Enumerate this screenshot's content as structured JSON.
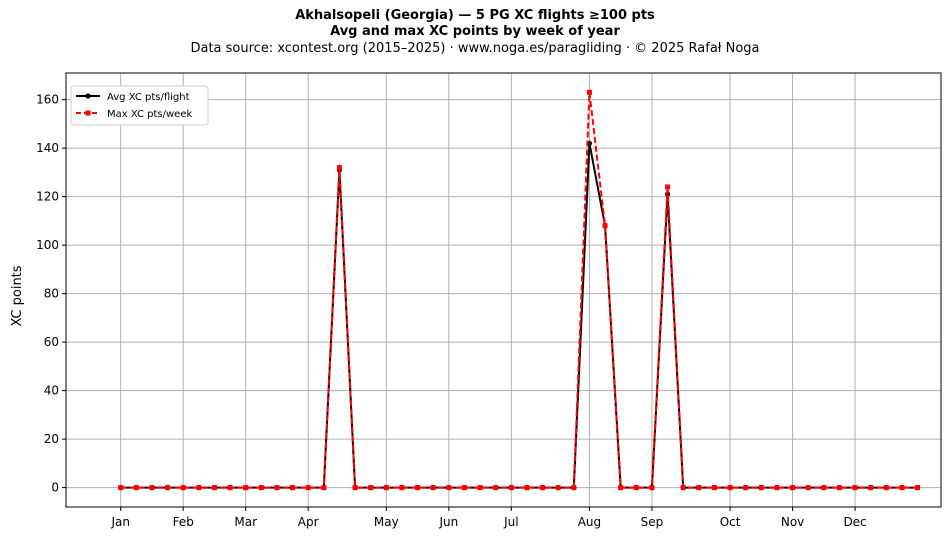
{
  "header": {
    "title": "Akhalsopeli (Georgia)  —  5 PG XC flights ≥100 pts",
    "subtitle": "Avg and max XC points by week of year",
    "source": "Data source: xcontest.org (2015–2025)  ·  www.noga.es/paragliding  ·  © 2025 Rafał Noga"
  },
  "chart_data": {
    "type": "line",
    "title": "Akhalsopeli (Georgia)  —  5 PG XC flights ≥100 pts",
    "subtitle": "Avg and max XC points by week of year",
    "xlabel": "",
    "ylabel": "XC points",
    "ylim": [
      -8,
      171
    ],
    "xlim": [
      -2.5,
      53.5
    ],
    "yticks": [
      0,
      20,
      40,
      60,
      80,
      100,
      120,
      140,
      160
    ],
    "month_ticks": [
      {
        "label": "Jan",
        "week": 1
      },
      {
        "label": "Feb",
        "week": 5
      },
      {
        "label": "Mar",
        "week": 9
      },
      {
        "label": "Apr",
        "week": 13
      },
      {
        "label": "May",
        "week": 18
      },
      {
        "label": "Jun",
        "week": 22
      },
      {
        "label": "Jul",
        "week": 26
      },
      {
        "label": "Aug",
        "week": 31
      },
      {
        "label": "Sep",
        "week": 35
      },
      {
        "label": "Oct",
        "week": 40
      },
      {
        "label": "Nov",
        "week": 44
      },
      {
        "label": "Dec",
        "week": 48
      }
    ],
    "x": [
      1,
      2,
      3,
      4,
      5,
      6,
      7,
      8,
      9,
      10,
      11,
      12,
      13,
      14,
      15,
      16,
      17,
      18,
      19,
      20,
      21,
      22,
      23,
      24,
      25,
      26,
      27,
      28,
      29,
      30,
      31,
      32,
      33,
      34,
      35,
      36,
      37,
      38,
      39,
      40,
      41,
      42,
      43,
      44,
      45,
      46,
      47,
      48,
      49,
      50,
      51,
      52
    ],
    "series": [
      {
        "name": "Avg XC pts/flight",
        "color": "#000000",
        "style": "solid",
        "marker": "circle",
        "values": [
          0,
          0,
          0,
          0,
          0,
          0,
          0,
          0,
          0,
          0,
          0,
          0,
          0,
          0,
          131,
          0,
          0,
          0,
          0,
          0,
          0,
          0,
          0,
          0,
          0,
          0,
          0,
          0,
          0,
          0,
          142,
          108,
          0,
          0,
          0,
          121,
          0,
          0,
          0,
          0,
          0,
          0,
          0,
          0,
          0,
          0,
          0,
          0,
          0,
          0,
          0,
          0
        ]
      },
      {
        "name": "Max XC pts/week",
        "color": "#ff0000",
        "style": "dashed",
        "marker": "square",
        "values": [
          0,
          0,
          0,
          0,
          0,
          0,
          0,
          0,
          0,
          0,
          0,
          0,
          0,
          0,
          132,
          0,
          0,
          0,
          0,
          0,
          0,
          0,
          0,
          0,
          0,
          0,
          0,
          0,
          0,
          0,
          163,
          108,
          0,
          0,
          0,
          124,
          0,
          0,
          0,
          0,
          0,
          0,
          0,
          0,
          0,
          0,
          0,
          0,
          0,
          0,
          0,
          0
        ]
      }
    ],
    "grid": true,
    "legend_position": "top-left"
  }
}
